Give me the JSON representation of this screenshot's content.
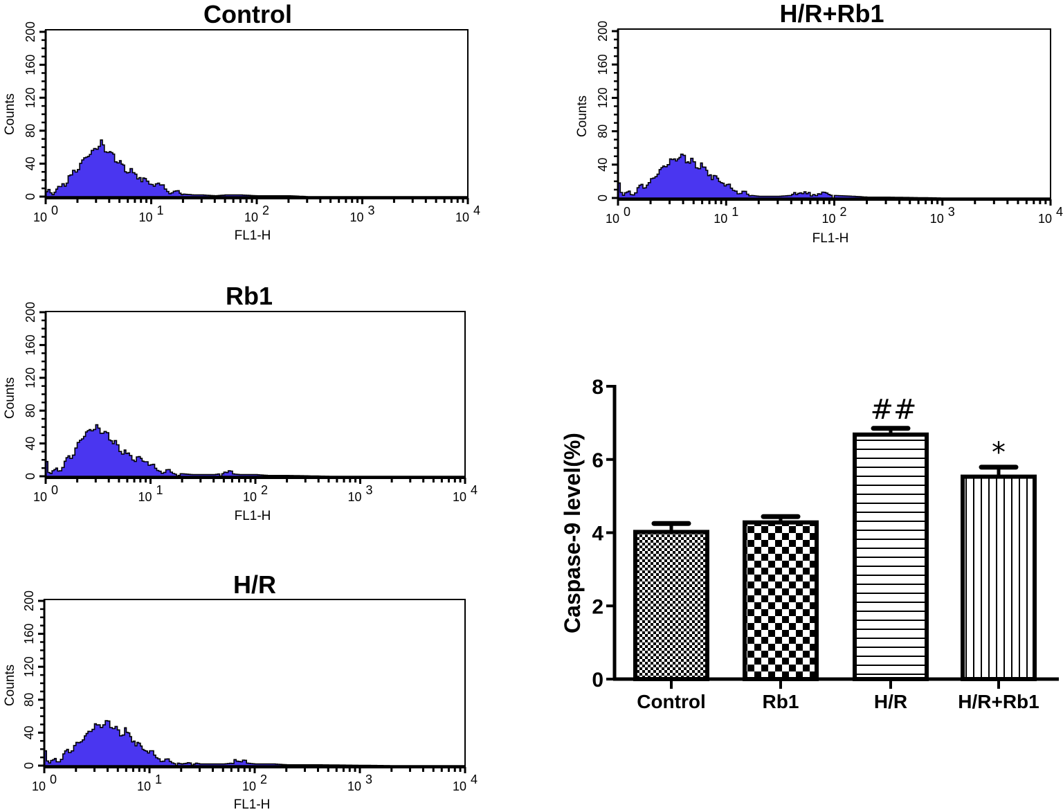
{
  "chart_data": [
    {
      "type": "area",
      "title": "Control",
      "xlabel": "FL1-H",
      "ylabel": "Counts",
      "xscale": "log",
      "xlim": [
        1,
        10000
      ],
      "ylim": [
        0,
        200
      ],
      "xtick_labels": [
        "10^0",
        "10^1",
        "10^2",
        "10^3",
        "10^4"
      ],
      "ytick_labels": [
        "0",
        "40",
        "80",
        "120",
        "160",
        "200"
      ],
      "x": [
        1.0,
        1.1,
        1.2,
        1.35,
        1.5,
        1.7,
        1.9,
        2.1,
        2.4,
        2.7,
        3.0,
        3.3,
        3.6,
        4.0,
        4.5,
        5.0,
        5.6,
        6.3,
        7.0,
        8.0,
        9.0,
        10,
        12,
        14,
        17,
        20,
        25,
        30,
        40,
        50,
        70,
        100,
        150,
        200,
        300,
        500,
        1000,
        10000
      ],
      "y": [
        6,
        4,
        6,
        10,
        16,
        24,
        32,
        40,
        50,
        56,
        60,
        66,
        58,
        54,
        46,
        40,
        34,
        30,
        26,
        22,
        17,
        15,
        12,
        8,
        5,
        3,
        2,
        2,
        1,
        2,
        2,
        1,
        1,
        1,
        0,
        0,
        0,
        0
      ],
      "color": "#4a36f0"
    },
    {
      "type": "area",
      "title": "H/R+Rb1",
      "xlabel": "FL1-H",
      "ylabel": "Counts",
      "xscale": "log",
      "xlim": [
        1,
        10000
      ],
      "ylim": [
        0,
        200
      ],
      "xtick_labels": [
        "10^0",
        "10^1",
        "10^2",
        "10^3",
        "10^4"
      ],
      "ytick_labels": [
        "0",
        "40",
        "80",
        "120",
        "160",
        "200"
      ],
      "x": [
        1.0,
        1.05,
        1.1,
        1.2,
        1.35,
        1.5,
        1.7,
        1.9,
        2.1,
        2.4,
        2.7,
        3.0,
        3.4,
        3.8,
        4.2,
        4.7,
        5.2,
        5.8,
        6.5,
        7.3,
        8.2,
        9.2,
        10,
        12,
        14,
        17,
        20,
        30,
        50,
        60,
        70,
        100,
        150,
        200,
        300,
        1000,
        10000
      ],
      "y": [
        18,
        6,
        4,
        5,
        7,
        10,
        14,
        18,
        26,
        34,
        40,
        44,
        48,
        52,
        46,
        44,
        40,
        38,
        32,
        26,
        22,
        18,
        14,
        10,
        6,
        3,
        2,
        2,
        4,
        5,
        4,
        3,
        2,
        1,
        1,
        0,
        0
      ],
      "color": "#4a36f0"
    },
    {
      "type": "area",
      "title": "Rb1",
      "xlabel": "FL1-H",
      "ylabel": "Counts",
      "xscale": "log",
      "xlim": [
        1,
        10000
      ],
      "ylim": [
        0,
        200
      ],
      "xtick_labels": [
        "10^0",
        "10^1",
        "10^2",
        "10^3",
        "10^4"
      ],
      "ytick_labels": [
        "0",
        "40",
        "80",
        "120",
        "160",
        "200"
      ],
      "x": [
        1.0,
        1.05,
        1.1,
        1.2,
        1.35,
        1.5,
        1.7,
        1.9,
        2.1,
        2.4,
        2.7,
        3.0,
        3.3,
        3.6,
        4.0,
        4.5,
        5.0,
        5.6,
        6.3,
        7.0,
        8.0,
        9.0,
        10,
        12,
        14,
        17,
        20,
        25,
        30,
        40,
        50,
        70,
        100,
        130,
        200,
        500,
        2000,
        10000
      ],
      "y": [
        18,
        4,
        4,
        6,
        10,
        16,
        24,
        34,
        46,
        54,
        58,
        60,
        56,
        54,
        48,
        40,
        34,
        28,
        24,
        22,
        20,
        18,
        12,
        8,
        6,
        4,
        3,
        2,
        2,
        2,
        4,
        2,
        2,
        1,
        1,
        0,
        0,
        0
      ],
      "color": "#4a36f0"
    },
    {
      "type": "area",
      "title": "H/R",
      "xlabel": "FL1-H",
      "ylabel": "Counts",
      "xscale": "log",
      "xlim": [
        1,
        10000
      ],
      "ylim": [
        0,
        200
      ],
      "xtick_labels": [
        "10^0",
        "10^1",
        "10^2",
        "10^3",
        "10^4"
      ],
      "ytick_labels": [
        "0",
        "40",
        "80",
        "120",
        "160",
        "200"
      ],
      "x": [
        1.0,
        1.05,
        1.1,
        1.2,
        1.35,
        1.5,
        1.7,
        1.9,
        2.1,
        2.4,
        2.7,
        3.0,
        3.4,
        3.8,
        4.2,
        4.7,
        5.2,
        5.8,
        6.5,
        7.3,
        8.2,
        9.2,
        10,
        12,
        14,
        17,
        20,
        25,
        30,
        50,
        70,
        100,
        150,
        200,
        400,
        2000,
        10000
      ],
      "y": [
        18,
        5,
        4,
        5,
        8,
        12,
        18,
        24,
        30,
        36,
        44,
        48,
        50,
        54,
        50,
        44,
        40,
        42,
        34,
        28,
        22,
        18,
        16,
        10,
        6,
        4,
        2,
        4,
        2,
        2,
        4,
        2,
        2,
        1,
        1,
        0,
        0
      ],
      "color": "#4a36f0"
    },
    {
      "type": "bar",
      "title": "",
      "xlabel": "",
      "ylabel": "Caspase-9 level(%)",
      "categories": [
        "Control",
        "Rb1",
        "H/R",
        "H/R+Rb1"
      ],
      "values": [
        4.02,
        4.28,
        6.68,
        5.53
      ],
      "errors": [
        0.23,
        0.16,
        0.17,
        0.26
      ],
      "annotations": [
        "",
        "",
        "##",
        "*"
      ],
      "patterns": [
        "fine-checker",
        "coarse-checker",
        "horizontal-lines",
        "vertical-lines"
      ],
      "ylim": [
        0,
        8
      ],
      "ytick_labels": [
        "0",
        "2",
        "4",
        "6",
        "8"
      ],
      "yticks": [
        0,
        2,
        4,
        6,
        8
      ]
    }
  ]
}
